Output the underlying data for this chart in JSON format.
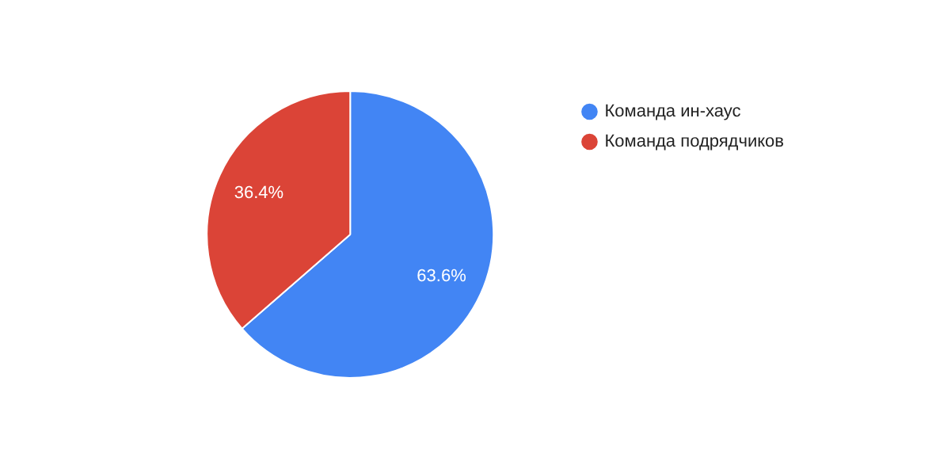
{
  "chart_data": {
    "type": "pie",
    "categories": [
      "Команда ин-хаус",
      "Команда подрядчиков"
    ],
    "values": [
      63.6,
      36.4
    ],
    "colors": [
      "#4285f4",
      "#db4437"
    ],
    "value_labels": [
      "63.6%",
      "36.4%"
    ],
    "legend": "top right"
  }
}
